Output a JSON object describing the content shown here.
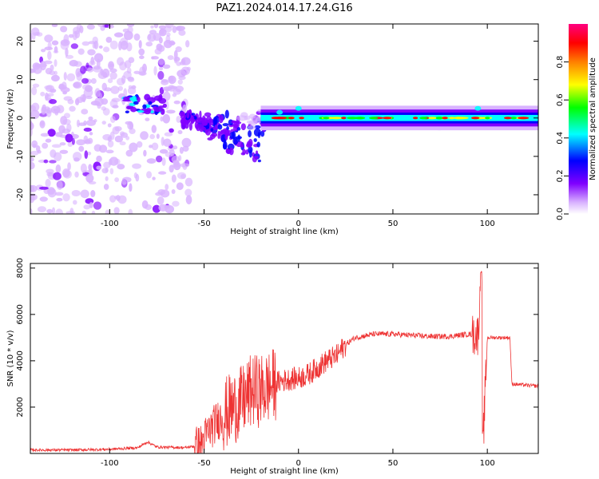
{
  "title": "PAZ1.2024.014.17.24.G16",
  "chart_data": [
    {
      "type": "heatmap",
      "xlabel": "Height of straight line (km)",
      "ylabel": "Frequency (Hz)",
      "xlim": [
        -142,
        127
      ],
      "ylim": [
        -25,
        24.5
      ],
      "x_ticks": [
        -100,
        -50,
        0,
        50,
        100
      ],
      "y_ticks": [
        -20,
        -10,
        0,
        10,
        20
      ],
      "colorbar": {
        "label": "Normalized spectral amplitude",
        "range": [
          0,
          1
        ],
        "ticks": [
          0.0,
          0.2,
          0.4,
          0.6,
          0.8
        ],
        "colors": [
          "#ffffff",
          "#d9b3ff",
          "#8000ff",
          "#0000ff",
          "#00ffff",
          "#00ff00",
          "#ffff00",
          "#ff8000",
          "#ff0000",
          "#ff0080"
        ]
      },
      "features": [
        {
          "region": "scattered noise, purple speckles",
          "x_range": [
            -142,
            -60
          ],
          "f_range": [
            -25,
            24.5
          ],
          "amplitude": 0.15
        },
        {
          "region": "strong blobs near 4 Hz",
          "x_range": [
            -92,
            -70
          ],
          "f_center": 4,
          "amplitude": 0.45
        },
        {
          "region": "diffuse descending streaks",
          "x_range": [
            -60,
            -20
          ],
          "f_center": -4,
          "amplitude": 0.3
        },
        {
          "region": "carrier line near 0 Hz",
          "x_range": [
            -20,
            127
          ],
          "f_center": 0,
          "amplitude": 0.85
        }
      ]
    },
    {
      "type": "line",
      "xlabel": "Height of straight line (km)",
      "ylabel": "SNR (10 * v/v)",
      "xlim": [
        -142,
        127
      ],
      "ylim": [
        0,
        8200
      ],
      "x_ticks": [
        -100,
        -50,
        0,
        50,
        100
      ],
      "y_ticks": [
        2000,
        4000,
        6000,
        8000
      ],
      "color": "#ee3333",
      "series": [
        {
          "points": [
            [
              -142,
              150
            ],
            [
              -120,
              150
            ],
            [
              -100,
              180
            ],
            [
              -85,
              250
            ],
            [
              -80,
              500
            ],
            [
              -75,
              280
            ],
            [
              -60,
              250
            ],
            [
              -52,
              350
            ],
            [
              -48,
              900
            ],
            [
              -42,
              1500
            ],
            [
              -36,
              1900
            ],
            [
              -30,
              2200
            ],
            [
              -25,
              2700
            ],
            [
              -20,
              2700
            ],
            [
              -15,
              2900
            ],
            [
              -10,
              3100
            ],
            [
              -5,
              3200
            ],
            [
              0,
              3250
            ],
            [
              5,
              3400
            ],
            [
              10,
              3700
            ],
            [
              15,
              4000
            ],
            [
              20,
              4200
            ],
            [
              25,
              4700
            ],
            [
              30,
              5000
            ],
            [
              40,
              5150
            ],
            [
              50,
              5150
            ],
            [
              60,
              5100
            ],
            [
              70,
              5050
            ],
            [
              80,
              5050
            ],
            [
              90,
              5150
            ],
            [
              95,
              5100
            ],
            [
              97,
              7800
            ],
            [
              98,
              900
            ],
            [
              100,
              5000
            ],
            [
              105,
              5000
            ],
            [
              112,
              5000
            ],
            [
              113,
              3000
            ],
            [
              120,
              2950
            ],
            [
              127,
              2900
            ]
          ]
        }
      ]
    }
  ]
}
